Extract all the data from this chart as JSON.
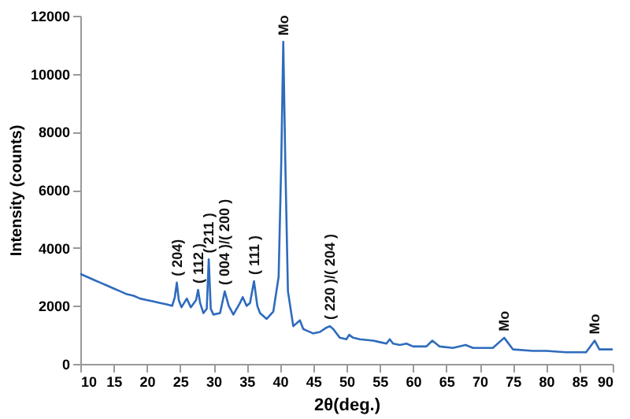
{
  "chart_data": {
    "type": "line",
    "xlabel": "2θ(deg.)",
    "ylabel": "Intensity (counts)",
    "xlim": [
      10,
      90
    ],
    "xticks": [
      10,
      15,
      20,
      25,
      30,
      35,
      40,
      45,
      50,
      55,
      60,
      65,
      70,
      75,
      80,
      85,
      90
    ],
    "ylim": [
      0,
      12000
    ],
    "yticks": [
      0,
      2000,
      4000,
      6000,
      8000,
      10000,
      12000
    ],
    "grid": false,
    "marker": "none",
    "line_style": "solid",
    "series": [
      {
        "color": "#2e6bbd",
        "x": [
          10,
          11,
          12,
          13,
          14,
          15,
          16,
          17,
          18,
          19,
          20,
          21,
          22,
          23,
          23.8,
          24.2,
          24.5,
          24.8,
          25.2,
          26,
          26.6,
          27.4,
          27.7,
          28,
          28.5,
          29,
          29.3,
          29.6,
          30,
          31,
          31.7,
          32.3,
          33,
          34,
          34.4,
          35,
          35.5,
          36.1,
          36.6,
          37,
          38,
          39,
          39.8,
          40.2,
          40.5,
          40.8,
          41.2,
          42,
          43,
          43.5,
          44,
          45,
          46,
          47,
          47.5,
          48,
          49,
          50,
          50.4,
          51,
          52,
          54,
          55,
          56,
          56.5,
          57,
          58,
          59,
          60,
          62,
          62.9,
          64,
          66,
          67.9,
          69,
          72,
          73.7,
          75,
          78,
          80,
          83,
          86,
          87.3,
          88,
          89,
          90
        ],
        "values": [
          3100,
          3000,
          2900,
          2800,
          2700,
          2600,
          2500,
          2400,
          2350,
          2250,
          2200,
          2150,
          2100,
          2050,
          2000,
          2300,
          2800,
          2200,
          1950,
          2250,
          1950,
          2200,
          2550,
          2100,
          1750,
          1900,
          3600,
          1900,
          1700,
          1750,
          2500,
          2000,
          1700,
          2100,
          2300,
          2000,
          2100,
          2850,
          2000,
          1750,
          1550,
          1800,
          3000,
          7000,
          11100,
          7000,
          2500,
          1300,
          1500,
          1200,
          1150,
          1050,
          1100,
          1250,
          1300,
          1200,
          900,
          850,
          1000,
          900,
          850,
          800,
          750,
          700,
          850,
          700,
          650,
          700,
          600,
          600,
          800,
          600,
          550,
          650,
          550,
          550,
          900,
          500,
          450,
          450,
          400,
          400,
          800,
          500,
          500,
          500
        ]
      }
    ],
    "annotations": [
      {
        "text": "( 204)",
        "x": 24.5,
        "y": 2800
      },
      {
        "text": "( 112 )",
        "x": 27.7,
        "y": 2550
      },
      {
        "text": "( 211 )",
        "x": 29.3,
        "y": 3600
      },
      {
        "text": "( 004 )/( 200 )",
        "x": 31.7,
        "y": 2500
      },
      {
        "text": "( 111 )",
        "x": 36.1,
        "y": 2850
      },
      {
        "text": "Mo",
        "x": 40.5,
        "y": 11100
      },
      {
        "text": "( 220 )/( 204 )",
        "x": 47.5,
        "y": 1300
      },
      {
        "text": "Mo",
        "x": 73.7,
        "y": 900
      },
      {
        "text": "Mo",
        "x": 87.3,
        "y": 800
      }
    ]
  }
}
